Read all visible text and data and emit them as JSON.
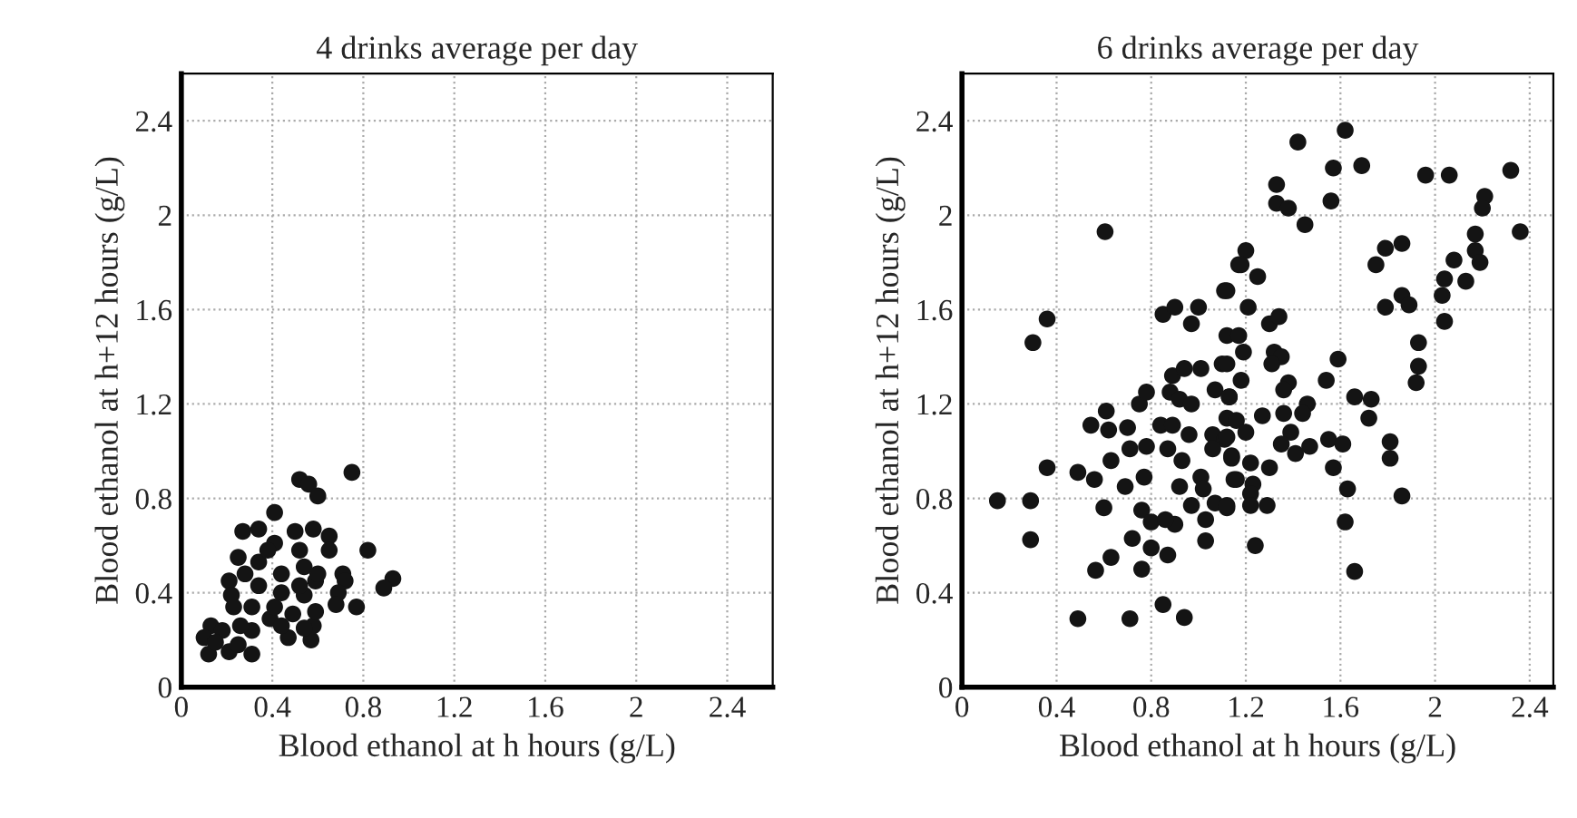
{
  "chart_data": [
    {
      "type": "scatter",
      "title": "4 drinks average per day",
      "xlabel": "Blood ethanol at h hours (g/L)",
      "ylabel": "Blood ethanol at h+12 hours (g/L)",
      "xlim": [
        0,
        2.6
      ],
      "ylim": [
        0,
        2.6
      ],
      "xticks": [
        0,
        0.4,
        0.8,
        1.2,
        1.6,
        2,
        2.4
      ],
      "yticks": [
        0,
        0.4,
        0.8,
        1.2,
        1.6,
        2,
        2.4
      ],
      "grid": true,
      "marker": "circle",
      "series": [
        {
          "color": "#141414",
          "x": [
            0.75,
            0.52,
            0.56,
            0.6,
            0.41,
            0.27,
            0.34,
            0.5,
            0.58,
            0.65,
            0.65,
            0.82,
            0.41,
            0.25,
            0.52,
            0.71,
            0.72,
            0.69,
            0.68,
            0.77,
            0.93,
            0.89,
            0.59,
            0.21,
            0.22,
            0.13,
            0.1,
            0.12,
            0.21,
            0.31,
            0.18,
            0.31,
            0.47,
            0.57,
            0.58,
            0.39,
            0.49,
            0.34,
            0.44,
            0.54,
            0.34,
            0.44,
            0.54,
            0.31,
            0.23,
            0.59,
            0.52,
            0.38,
            0.28,
            0.26,
            0.15,
            0.54,
            0.44,
            0.6,
            0.25,
            0.41
          ],
          "values": [
            0.91,
            0.88,
            0.86,
            0.81,
            0.74,
            0.66,
            0.67,
            0.66,
            0.67,
            0.64,
            0.58,
            0.58,
            0.61,
            0.55,
            0.58,
            0.48,
            0.45,
            0.4,
            0.35,
            0.34,
            0.46,
            0.42,
            0.45,
            0.45,
            0.39,
            0.26,
            0.21,
            0.14,
            0.15,
            0.14,
            0.24,
            0.24,
            0.21,
            0.2,
            0.26,
            0.29,
            0.31,
            0.43,
            0.48,
            0.51,
            0.53,
            0.4,
            0.39,
            0.34,
            0.34,
            0.32,
            0.43,
            0.58,
            0.48,
            0.26,
            0.19,
            0.25,
            0.26,
            0.48,
            0.18,
            0.34
          ]
        }
      ]
    },
    {
      "type": "scatter",
      "title": "6 drinks average per day",
      "xlabel": "Blood ethanol at h hours (g/L)",
      "ylabel": "Blood ethanol at h+12 hours (g/L)",
      "xlim": [
        0,
        2.5
      ],
      "ylim": [
        0,
        2.6
      ],
      "xticks": [
        0,
        0.4,
        0.8,
        1.2,
        1.6,
        2,
        2.4
      ],
      "yticks": [
        0,
        0.4,
        0.8,
        1.2,
        1.6,
        2,
        2.4
      ],
      "grid": true,
      "marker": "circle",
      "series": [
        {
          "color": "#141414",
          "x": [
            0.605,
            0.36,
            0.3,
            0.15,
            0.29,
            0.29,
            0.36,
            0.49,
            0.71,
            0.94,
            0.85,
            0.565,
            0.63,
            0.76,
            0.6,
            0.545,
            0.62,
            0.7,
            0.61,
            0.75,
            0.78,
            0.49,
            0.56,
            0.63,
            0.69,
            0.71,
            0.78,
            0.77,
            0.76,
            0.8,
            0.72,
            0.8,
            0.87,
            0.85,
            0.9,
            1.0,
            0.97,
            0.89,
            0.94,
            1.01,
            0.88,
            0.92,
            0.84,
            0.89,
            0.87,
            0.93,
            0.96,
            0.97,
            1.07,
            1.11,
            1.17,
            1.12,
            1.1,
            0.92,
            1.01,
            1.02,
            0.97,
            0.9,
            0.86,
            1.03,
            1.03,
            1.07,
            1.12,
            1.06,
            1.11,
            1.06,
            1.14,
            1.15,
            1.12,
            1.13,
            1.62,
            1.42,
            1.57,
            1.69,
            1.33,
            1.33,
            1.38,
            1.56,
            1.45,
            1.96,
            2.06,
            2.32,
            2.21,
            2.2,
            2.36,
            2.17,
            2.17,
            2.08,
            2.19,
            2.04,
            2.13,
            2.03,
            2.04,
            1.93,
            1.93,
            1.92,
            1.86,
            1.79,
            1.75,
            1.86,
            1.89,
            1.79,
            1.2,
            1.18,
            1.25,
            1.12,
            1.21,
            1.3,
            1.34,
            1.17,
            1.19,
            1.32,
            1.35,
            1.31,
            1.12,
            1.18,
            1.38,
            1.36,
            1.46,
            1.44,
            1.36,
            1.27,
            1.13,
            1.16,
            1.2,
            1.12,
            1.14,
            1.22,
            1.3,
            1.16,
            1.23,
            1.22,
            1.22,
            1.29,
            1.12,
            1.24,
            1.59,
            1.54,
            1.66,
            1.73,
            1.72,
            1.39,
            1.35,
            1.41,
            1.47,
            1.55,
            1.61,
            1.81,
            1.81,
            1.57,
            1.63,
            1.86,
            1.62,
            1.66
          ],
          "values": [
            1.93,
            1.56,
            1.46,
            0.79,
            0.79,
            0.625,
            0.93,
            0.29,
            0.29,
            0.295,
            0.35,
            0.495,
            0.55,
            0.5,
            0.76,
            1.11,
            1.09,
            1.1,
            1.17,
            1.2,
            1.25,
            0.91,
            0.88,
            0.96,
            0.85,
            1.01,
            1.02,
            0.89,
            0.75,
            0.7,
            0.63,
            0.59,
            0.56,
            1.58,
            1.61,
            1.61,
            1.54,
            1.32,
            1.35,
            1.35,
            1.25,
            1.22,
            1.11,
            1.11,
            1.01,
            0.96,
            1.07,
            1.2,
            1.26,
            1.68,
            1.79,
            1.49,
            1.37,
            0.85,
            0.89,
            0.84,
            0.77,
            0.69,
            0.71,
            0.71,
            0.62,
            0.78,
            0.76,
            1.07,
            1.05,
            1.01,
            0.97,
            0.88,
            1.14,
            1.23,
            2.36,
            2.31,
            2.2,
            2.21,
            2.13,
            2.05,
            2.03,
            2.06,
            1.96,
            2.17,
            2.17,
            2.19,
            2.08,
            2.03,
            1.93,
            1.92,
            1.85,
            1.81,
            1.8,
            1.73,
            1.72,
            1.66,
            1.55,
            1.46,
            1.36,
            1.29,
            1.88,
            1.86,
            1.79,
            1.66,
            1.62,
            1.61,
            1.85,
            1.79,
            1.74,
            1.68,
            1.61,
            1.54,
            1.57,
            1.49,
            1.42,
            1.42,
            1.4,
            1.37,
            1.37,
            1.3,
            1.29,
            1.26,
            1.2,
            1.16,
            1.16,
            1.15,
            1.23,
            1.13,
            1.08,
            1.06,
            0.98,
            0.95,
            0.93,
            0.88,
            0.86,
            0.82,
            0.77,
            0.77,
            0.77,
            0.6,
            1.39,
            1.3,
            1.23,
            1.22,
            1.14,
            1.08,
            1.03,
            0.99,
            1.02,
            1.05,
            1.03,
            1.04,
            0.97,
            0.93,
            0.84,
            0.81,
            0.7,
            0.49
          ]
        }
      ]
    }
  ]
}
